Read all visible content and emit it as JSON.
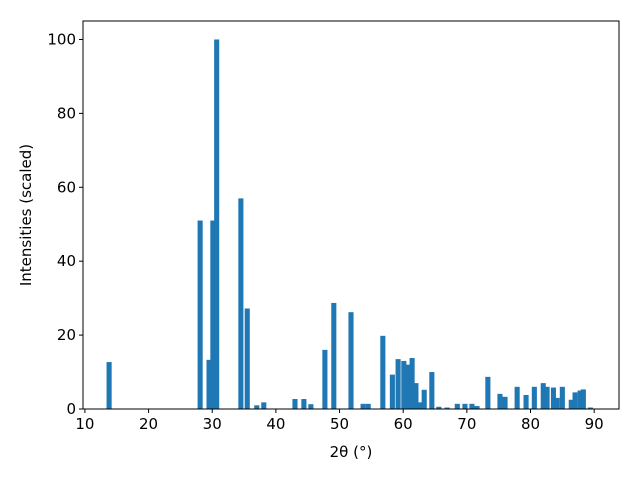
{
  "chart_data": {
    "type": "bar",
    "x_label": "2θ (°)",
    "y_label": "Intensities (scaled)",
    "color": "#1f77b4",
    "x": [
      13.8,
      28.1,
      29.5,
      30.1,
      30.7,
      34.5,
      35.5,
      37.0,
      38.1,
      43.0,
      44.4,
      45.5,
      47.7,
      49.1,
      51.8,
      53.7,
      54.5,
      56.8,
      58.3,
      59.2,
      60.1,
      60.8,
      61.4,
      62.0,
      62.7,
      63.3,
      64.5,
      65.6,
      66.9,
      68.5,
      69.7,
      70.8,
      71.6,
      73.3,
      75.2,
      76.0,
      77.9,
      79.3,
      80.6,
      82.0,
      82.6,
      83.6,
      84.2,
      85.0,
      86.4,
      87.0,
      87.8,
      88.3,
      89.4
    ],
    "values": [
      12.7,
      51,
      13.3,
      51,
      100,
      57,
      27.2,
      1,
      1.8,
      2.7,
      2.7,
      1.3,
      16,
      28.7,
      26.2,
      1.4,
      1.4,
      19.8,
      9.3,
      13.5,
      13,
      12,
      13.8,
      7,
      1.8,
      5.2,
      10,
      0.6,
      0.4,
      1.4,
      1.4,
      1.4,
      0.8,
      8.7,
      4.1,
      3.3,
      6,
      3.8,
      6,
      7,
      6,
      5.8,
      3,
      6,
      2.5,
      4.5,
      5,
      5.3,
      0.4
    ],
    "xlim": [
      9.7,
      93.9
    ],
    "ylim": [
      0,
      105
    ],
    "xticks": [
      10,
      20,
      30,
      40,
      50,
      60,
      70,
      80,
      90
    ],
    "yticks": [
      0,
      20,
      40,
      60,
      80,
      100
    ],
    "grid": false
  }
}
